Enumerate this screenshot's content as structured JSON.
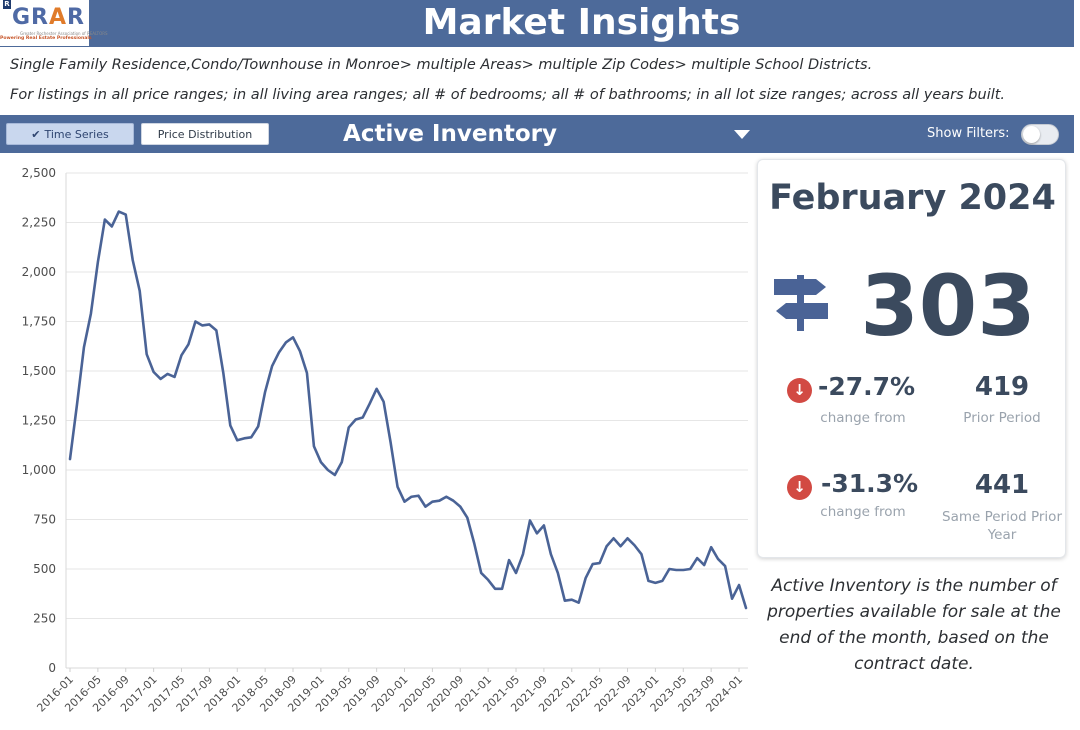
{
  "header": {
    "title": "Market Insights",
    "logo_text": "GRAR",
    "logo_sub": "Powering Real Estate Professionals",
    "logo_sub2": "Greater Rochester Association of REALTORS"
  },
  "description": {
    "line1": "Single Family Residence,Condo/Townhouse in Monroe> multiple Areas> multiple Zip Codes> multiple School Districts.",
    "line2": "For listings in all price ranges; in all living area ranges; all # of bedrooms; all # of bathrooms; in all lot size ranges; across all years built."
  },
  "controls": {
    "time_series_label": "Time Series",
    "price_distribution_label": "Price Distribution",
    "metric_title": "Active Inventory",
    "show_filters_label": "Show Filters:",
    "show_filters_on": false
  },
  "stat_card": {
    "period": "February 2024",
    "value": "303",
    "change_prior_pct": "-27.7%",
    "change_prior_label": "change from",
    "prior_value": "419",
    "prior_label": "Prior Period",
    "change_year_pct": "-31.3%",
    "change_year_label": "change from",
    "year_value": "441",
    "year_label": "Same Period Prior Year"
  },
  "definition": "Active Inventory is the number of properties available for sale at the end of the month, based on the contract date.",
  "colors": {
    "header": "#4d6a9a",
    "line": "#4a6396",
    "down_badge": "#d24a43",
    "text": "#3b4a5e"
  },
  "icons": {
    "time_series": "check-icon",
    "dropdown": "chevron-down-icon",
    "card": "signpost-icon",
    "change": "arrow-down-circle-icon"
  },
  "chart_data": {
    "type": "line",
    "title": "Active Inventory",
    "xlabel": "",
    "ylabel": "",
    "ylim": [
      0,
      2500
    ],
    "yticks": [
      0,
      250,
      500,
      750,
      1000,
      1250,
      1500,
      1750,
      2000,
      2250,
      2500
    ],
    "yticklabels": [
      "0",
      "250",
      "500",
      "750",
      "1,000",
      "1,250",
      "1,500",
      "1,750",
      "2,000",
      "2,250",
      "2,500"
    ],
    "xticklabels": [
      "2016-01",
      "2016-05",
      "2016-09",
      "2017-01",
      "2017-05",
      "2017-09",
      "2018-01",
      "2018-05",
      "2018-09",
      "2019-01",
      "2019-05",
      "2019-09",
      "2020-01",
      "2020-05",
      "2020-09",
      "2021-01",
      "2021-05",
      "2021-09",
      "2022-01",
      "2022-05",
      "2022-09",
      "2023-01",
      "2023-05",
      "2023-09",
      "2024-01"
    ],
    "grid": true,
    "series": [
      {
        "values": [
          1055,
          1330,
          1620,
          1790,
          2050,
          2265,
          2230,
          2305,
          2290,
          2060,
          1905,
          1585,
          1495,
          1460,
          1485,
          1470,
          1580,
          1635,
          1750,
          1730,
          1735,
          1705,
          1490,
          1225,
          1150,
          1160,
          1165,
          1220,
          1395,
          1525,
          1595,
          1645,
          1670,
          1600,
          1490,
          1120,
          1040,
          1000,
          975,
          1040,
          1215,
          1255,
          1265,
          1335,
          1410,
          1345,
          1140,
          915,
          840,
          865,
          870,
          815,
          840,
          845,
          865,
          845,
          815,
          760,
          630,
          480,
          445,
          400,
          400,
          545,
          480,
          575,
          745,
          680,
          720,
          575,
          480,
          340,
          345,
          330,
          455,
          525,
          530,
          615,
          655,
          615,
          655,
          620,
          575,
          440,
          430,
          440,
          500,
          495,
          495,
          500,
          555,
          520,
          610,
          550,
          515,
          350,
          419,
          303
        ]
      }
    ]
  }
}
